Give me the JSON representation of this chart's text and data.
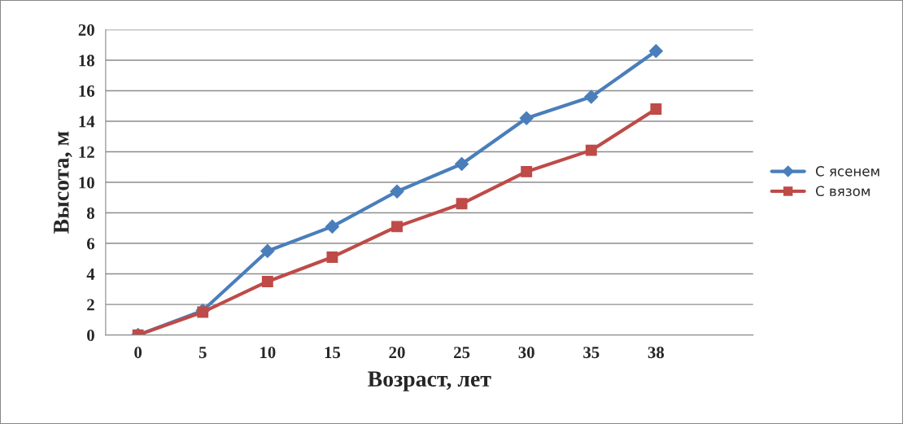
{
  "chart_data": {
    "type": "line",
    "xlabel": "Возраст, лет",
    "ylabel": "Высота, м",
    "categories": [
      "0",
      "5",
      "10",
      "15",
      "20",
      "25",
      "30",
      "35",
      "38",
      null
    ],
    "series": [
      {
        "name": "С ясенем",
        "color": "#4a7ebb",
        "marker": "diamond",
        "values": [
          0,
          1.6,
          5.5,
          7.1,
          9.4,
          11.2,
          14.2,
          15.6,
          18.6,
          null
        ]
      },
      {
        "name": "С вязом",
        "color": "#be4b48",
        "marker": "square",
        "values": [
          0,
          1.5,
          3.5,
          5.1,
          7.1,
          8.6,
          10.7,
          12.1,
          14.8,
          null
        ]
      }
    ],
    "ylim": [
      0,
      20
    ],
    "yticks": [
      0,
      2,
      4,
      6,
      8,
      10,
      12,
      14,
      16,
      18,
      20
    ],
    "grid": "y",
    "legend": "right"
  }
}
